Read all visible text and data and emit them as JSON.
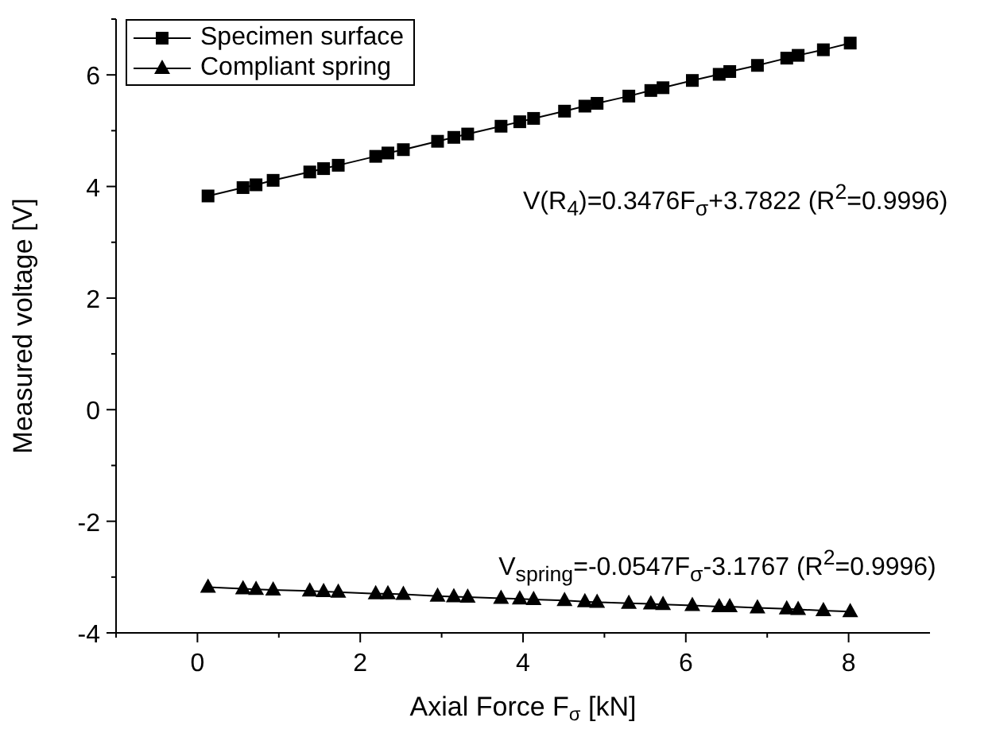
{
  "chart_data": {
    "type": "line",
    "xlabel": "Axial Force F$_{σ}$ [kN]",
    "ylabel": "Measured voltage [V]",
    "x": [
      0.13,
      0.56,
      0.72,
      0.93,
      1.38,
      1.55,
      1.73,
      2.19,
      2.34,
      2.53,
      2.95,
      3.15,
      3.32,
      3.73,
      3.96,
      4.13,
      4.51,
      4.76,
      4.91,
      5.3,
      5.57,
      5.72,
      6.08,
      6.41,
      6.54,
      6.88,
      7.24,
      7.38,
      7.69,
      8.02
    ],
    "series": [
      {
        "name": "Specimen surface",
        "color": "#000000",
        "marker": "square",
        "values": [
          3.83,
          3.98,
          4.03,
          4.11,
          4.26,
          4.32,
          4.38,
          4.54,
          4.6,
          4.66,
          4.81,
          4.88,
          4.94,
          5.08,
          5.16,
          5.22,
          5.35,
          5.44,
          5.49,
          5.62,
          5.72,
          5.77,
          5.9,
          6.01,
          6.06,
          6.17,
          6.3,
          6.35,
          6.45,
          6.57
        ]
      },
      {
        "name": "Compliant spring",
        "color": "#000000",
        "marker": "triangle",
        "values": [
          -3.18,
          -3.21,
          -3.22,
          -3.23,
          -3.25,
          -3.26,
          -3.27,
          -3.3,
          -3.3,
          -3.31,
          -3.34,
          -3.35,
          -3.36,
          -3.38,
          -3.39,
          -3.4,
          -3.42,
          -3.44,
          -3.45,
          -3.47,
          -3.48,
          -3.49,
          -3.51,
          -3.53,
          -3.53,
          -3.55,
          -3.57,
          -3.58,
          -3.6,
          -3.62
        ]
      }
    ],
    "xlim": [
      -1,
      9
    ],
    "xticks": [
      {
        "value": -1,
        "label": null
      },
      0,
      {
        "value": 1,
        "label": null
      },
      2,
      {
        "value": 3,
        "label": null
      },
      4,
      {
        "value": 5,
        "label": null
      },
      6,
      {
        "value": 7,
        "label": null
      },
      8
    ],
    "ylim": [
      -4,
      7
    ],
    "yticks": [
      -4,
      {
        "value": -3,
        "label": null
      },
      -2,
      {
        "value": -1,
        "label": null
      },
      0,
      {
        "value": 1,
        "label": null
      },
      2,
      {
        "value": 3,
        "label": null
      },
      4,
      {
        "value": 5,
        "label": null
      },
      6,
      {
        "value": 7,
        "label": null
      }
    ],
    "annotations": [
      "V(R$_{4}$)=0.3476F$_{σ}$+3.7822 (R$^{2}$=0.9996)",
      "V$_{spring}$=-0.0547F$_{σ}$-3.1767 (R$^{2}$=0.9996)"
    ],
    "legend": "top left",
    "grid": false,
    "line_style": "solid"
  }
}
